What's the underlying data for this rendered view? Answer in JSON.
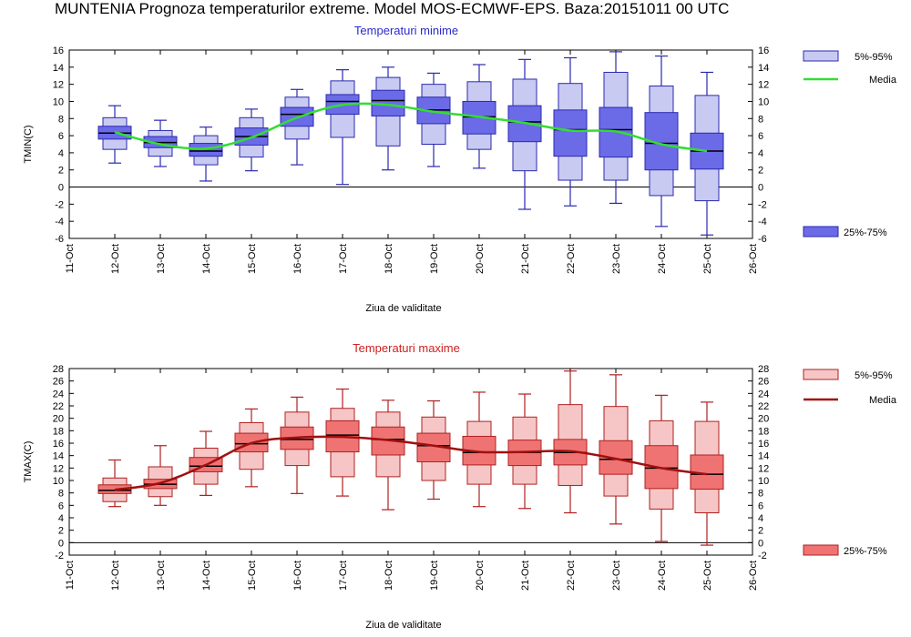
{
  "page": {
    "title": "MUNTENIA  Prognoza temperaturilor extreme.  Model MOS-ECMWF-EPS. Baza:20151011 00 UTC"
  },
  "chart_data": [
    {
      "type": "boxplot",
      "title": "Temperaturi minime",
      "title_color": "#2a2ad0",
      "ylabel": "TMIN(C)",
      "xlabel": "Ziua de validitate",
      "ylim": [
        -6,
        16
      ],
      "yticks": [
        -6,
        -4,
        -2,
        0,
        2,
        4,
        6,
        8,
        10,
        12,
        14,
        16
      ],
      "x_ticks": [
        "11-Oct",
        "12-Oct",
        "13-Oct",
        "14-Oct",
        "15-Oct",
        "16-Oct",
        "17-Oct",
        "18-Oct",
        "19-Oct",
        "20-Oct",
        "21-Oct",
        "22-Oct",
        "23-Oct",
        "24-Oct",
        "25-Oct",
        "26-Oct"
      ],
      "categories": [
        "12-Oct",
        "13-Oct",
        "14-Oct",
        "15-Oct",
        "16-Oct",
        "17-Oct",
        "18-Oct",
        "19-Oct",
        "20-Oct",
        "21-Oct",
        "22-Oct",
        "23-Oct",
        "24-Oct",
        "25-Oct"
      ],
      "whisker_low": [
        2.8,
        2.4,
        0.7,
        1.9,
        2.6,
        0.3,
        2.0,
        2.4,
        2.2,
        -2.6,
        -2.2,
        -1.9,
        -4.6,
        -5.6
      ],
      "p5": [
        4.4,
        3.6,
        2.6,
        3.5,
        5.6,
        5.8,
        4.8,
        5.0,
        4.4,
        1.9,
        0.8,
        0.8,
        -1.0,
        -1.6
      ],
      "p25": [
        5.6,
        4.6,
        3.6,
        4.9,
        7.1,
        8.5,
        8.3,
        7.4,
        6.2,
        5.3,
        3.6,
        3.5,
        2.0,
        2.1
      ],
      "median": [
        6.3,
        5.2,
        4.2,
        5.9,
        8.5,
        10.0,
        10.1,
        9.0,
        8.2,
        7.6,
        6.7,
        6.7,
        5.1,
        4.2
      ],
      "p75": [
        7.1,
        5.9,
        5.1,
        6.9,
        9.3,
        10.8,
        11.3,
        10.5,
        10.0,
        9.5,
        9.0,
        9.3,
        8.7,
        6.3
      ],
      "p95": [
        8.1,
        6.6,
        6.0,
        8.1,
        10.5,
        12.4,
        12.8,
        12.0,
        12.3,
        12.6,
        12.1,
        13.4,
        11.8,
        10.7
      ],
      "whisker_high": [
        9.5,
        7.8,
        7.0,
        9.1,
        11.4,
        13.7,
        14.0,
        13.3,
        14.3,
        14.9,
        15.1,
        15.8,
        15.3,
        13.4
      ],
      "media": [
        6.4,
        5.0,
        4.5,
        5.8,
        8.1,
        9.6,
        9.6,
        8.8,
        8.2,
        7.5,
        6.6,
        6.5,
        5.0,
        4.2
      ],
      "colors": {
        "box_outer": "#c9caf2",
        "box_inner": "#6b6be8",
        "box_stroke": "#2a2ab0",
        "whisker": "#2a2ab0",
        "median": "#000000",
        "media_line": "#33dd33"
      },
      "legend": {
        "outer_label": "5%-95%",
        "media_label": "Media",
        "inner_label": "25%-75%"
      }
    },
    {
      "type": "boxplot",
      "title": "Temperaturi maxime",
      "title_color": "#d02020",
      "ylabel": "TMAX(C)",
      "xlabel": "Ziua de validitate",
      "ylim": [
        -2,
        28
      ],
      "yticks": [
        -2,
        0,
        2,
        4,
        6,
        8,
        10,
        12,
        14,
        16,
        18,
        20,
        22,
        24,
        26,
        28
      ],
      "x_ticks": [
        "11-Oct",
        "12-Oct",
        "13-Oct",
        "14-Oct",
        "15-Oct",
        "16-Oct",
        "17-Oct",
        "18-Oct",
        "19-Oct",
        "20-Oct",
        "21-Oct",
        "22-Oct",
        "23-Oct",
        "24-Oct",
        "25-Oct",
        "26-Oct"
      ],
      "categories": [
        "12-Oct",
        "13-Oct",
        "14-Oct",
        "15-Oct",
        "16-Oct",
        "17-Oct",
        "18-Oct",
        "19-Oct",
        "20-Oct",
        "21-Oct",
        "22-Oct",
        "23-Oct",
        "24-Oct",
        "25-Oct"
      ],
      "whisker_low": [
        5.8,
        6.0,
        7.6,
        9.0,
        7.9,
        7.5,
        5.3,
        7.0,
        5.8,
        5.5,
        4.8,
        3.0,
        0.2,
        -0.4
      ],
      "p5": [
        6.6,
        7.4,
        9.4,
        11.8,
        12.4,
        10.6,
        10.6,
        10.0,
        9.4,
        9.4,
        9.2,
        7.5,
        5.4,
        4.8
      ],
      "p25": [
        7.9,
        8.7,
        11.4,
        14.6,
        15.0,
        14.6,
        14.1,
        13.0,
        12.5,
        12.4,
        12.5,
        11.0,
        8.7,
        8.6
      ],
      "median": [
        8.4,
        9.4,
        12.3,
        15.9,
        16.6,
        17.3,
        16.6,
        15.6,
        14.5,
        14.5,
        14.5,
        13.4,
        12.0,
        11.0
      ],
      "p75": [
        9.3,
        10.2,
        13.7,
        17.6,
        18.6,
        19.6,
        18.6,
        17.6,
        17.1,
        16.5,
        16.6,
        16.4,
        15.6,
        14.1
      ],
      "p95": [
        10.4,
        12.2,
        15.2,
        19.3,
        21.0,
        21.6,
        21.0,
        20.2,
        19.5,
        20.2,
        22.2,
        21.9,
        19.6,
        19.5
      ],
      "whisker_high": [
        13.3,
        15.6,
        17.9,
        21.5,
        23.4,
        24.7,
        22.9,
        22.8,
        24.2,
        23.9,
        27.6,
        27.0,
        23.7,
        22.6
      ],
      "media": [
        8.5,
        9.6,
        12.5,
        16.0,
        16.9,
        17.0,
        16.5,
        15.6,
        14.6,
        14.6,
        14.7,
        13.5,
        12.0,
        11.0
      ],
      "colors": {
        "box_outer": "#f6c6c6",
        "box_inner": "#ef7373",
        "box_stroke": "#b02020",
        "whisker": "#b02020",
        "median": "#000000",
        "media_line": "#a01010"
      },
      "legend": {
        "outer_label": "5%-95%",
        "media_label": "Media",
        "inner_label": "25%-75%"
      }
    }
  ]
}
